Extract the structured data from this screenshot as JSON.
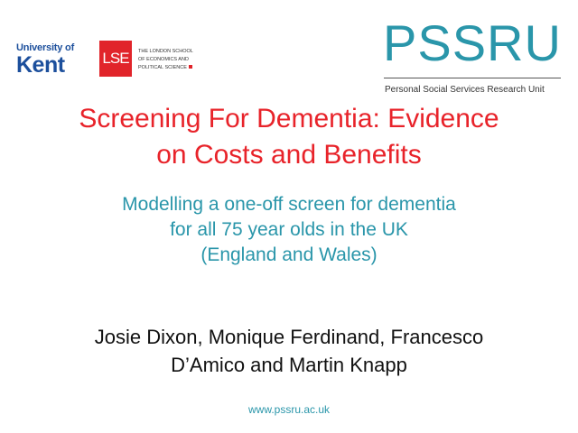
{
  "logos": {
    "kent": {
      "line1": "University of",
      "line2": "Kent"
    },
    "lse": {
      "mark": "LSE",
      "lines": [
        "The London School",
        "of Economics and",
        "Political Science"
      ]
    },
    "pssru": {
      "mark": "PSSRU",
      "subtitle": "Personal Social Services Research Unit"
    }
  },
  "slide": {
    "title_lines": [
      "Screening For Dementia: Evidence",
      "on Costs and Benefits"
    ],
    "subtitle_lines": [
      "Modelling a one-off screen for dementia",
      "for all 75 year olds in the UK",
      "(England and Wales)"
    ],
    "author_lines": [
      "Josie Dixon, Monique Ferdinand, Francesco",
      "D’Amico and Martin Knapp"
    ],
    "url": "www.pssru.ac.uk"
  },
  "colors": {
    "title": "#e8232a",
    "accent": "#2a96aa",
    "lse": "#e1242a",
    "kent": "#1c4f9c"
  }
}
